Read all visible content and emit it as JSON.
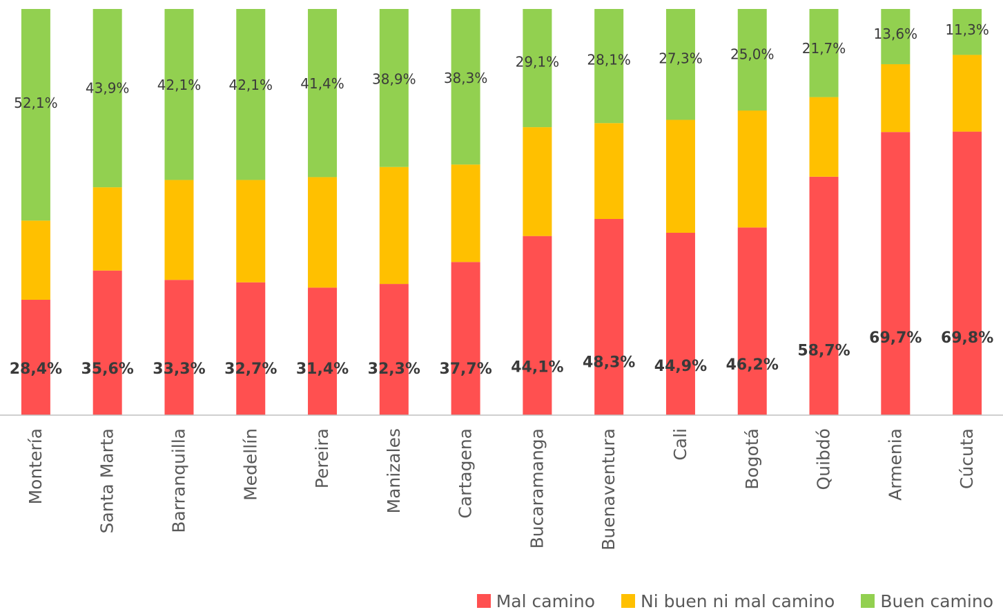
{
  "chart_data": {
    "type": "bar",
    "stacked": true,
    "orientation": "vertical",
    "categories": [
      "Montería",
      "Santa Marta",
      "Barranquilla",
      "Medellín",
      "Pereira",
      "Manizales",
      "Cartagena",
      "Bucaramanga",
      "Buenaventura",
      "Cali",
      "Bogotá",
      "Quibdó",
      "Armenia",
      "Cúcuta"
    ],
    "series": [
      {
        "name": "Mal camino",
        "color": "#FF5050",
        "values": [
          28.4,
          35.6,
          33.3,
          32.7,
          31.4,
          32.3,
          37.7,
          44.1,
          48.3,
          44.9,
          46.2,
          58.7,
          69.7,
          69.8
        ],
        "labels": [
          "28,4%",
          "35,6%",
          "33,3%",
          "32,7%",
          "31,4%",
          "32,3%",
          "37,7%",
          "44,1%",
          "48,3%",
          "44,9%",
          "46,2%",
          "58,7%",
          "69,7%",
          "69,8%"
        ]
      },
      {
        "name": "Ni buen ni mal camino",
        "color": "#FFC000",
        "values": [
          19.5,
          20.5,
          24.6,
          25.2,
          27.2,
          28.8,
          24.0,
          26.8,
          23.6,
          27.8,
          28.8,
          19.6,
          16.7,
          18.9
        ],
        "labels": [
          "",
          "",
          "",
          "",
          "",
          "",
          "",
          "",
          "",
          "",
          "",
          "",
          "",
          ""
        ]
      },
      {
        "name": "Buen camino",
        "color": "#92D050",
        "values": [
          52.1,
          43.9,
          42.1,
          42.1,
          41.4,
          38.9,
          38.3,
          29.1,
          28.1,
          27.3,
          25.0,
          21.7,
          13.6,
          11.3
        ],
        "labels": [
          "52,1%",
          "43,9%",
          "42,1%",
          "42,1%",
          "41,4%",
          "38,9%",
          "38,3%",
          "29,1%",
          "28,1%",
          "27,3%",
          "25,0%",
          "21,7%",
          "13,6%",
          "11,3%"
        ]
      }
    ],
    "ylim": [
      0,
      100
    ],
    "grid": false,
    "legend_position": "bottom-right"
  },
  "legend": {
    "items": [
      {
        "label": "Mal camino",
        "color": "#FF5050"
      },
      {
        "label": "Ni buen ni mal camino",
        "color": "#FFC000"
      },
      {
        "label": "Buen camino",
        "color": "#92D050"
      }
    ]
  }
}
